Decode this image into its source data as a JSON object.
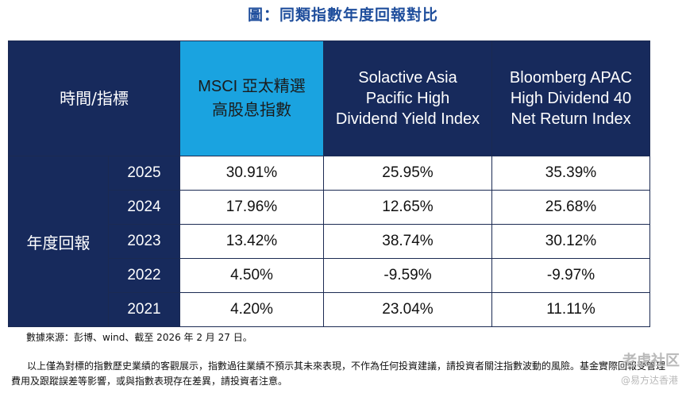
{
  "title": "圖：同類指數年度回報對比",
  "table": {
    "corner_label": "時間/指標",
    "row_group_label": "年度回報",
    "columns": [
      "MSCI 亞太精選 高股息指數",
      "Solactive Asia Pacific High Dividend Yield Index",
      "Bloomberg APAC High Dividend 40 Net Return Index"
    ],
    "rows": [
      {
        "year": "2025",
        "values": [
          "30.91%",
          "25.95%",
          "35.39%"
        ]
      },
      {
        "year": "2024",
        "values": [
          "17.96%",
          "12.65%",
          "25.68%"
        ]
      },
      {
        "year": "2023",
        "values": [
          "13.42%",
          "38.74%",
          "30.12%"
        ]
      },
      {
        "year": "2022",
        "values": [
          "4.50%",
          "-9.59%",
          "-9.97%"
        ]
      },
      {
        "year": "2021",
        "values": [
          "4.20%",
          "23.04%",
          "11.11%"
        ]
      }
    ]
  },
  "source": "數據來源：彭博、wind、截至 2026 年 2 月 27 日。",
  "disclaimer": "以上僅為對標的指數歷史業績的客觀展示，指數過往業績不預示其未來表現，不作為任何投資建議，請投資者關注指數波動的風險。基金實際回報受管理費用及跟蹤誤差等影響，或與指數表現存在差異，請投資者注意。",
  "branding": {
    "mark": "老虎社区",
    "sub": "@易方达香港"
  },
  "colors": {
    "header_bg": "#172a5c",
    "msci_bg": "#1aa3e0",
    "title": "#1f4e9c"
  }
}
